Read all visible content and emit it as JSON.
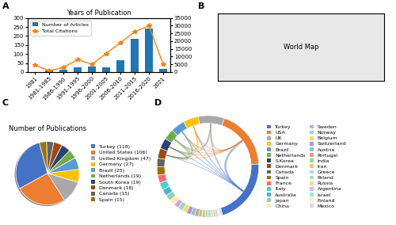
{
  "chart_data": [
    {
      "type": "bar",
      "title": "Years of Publication",
      "annotations": [
        "A"
      ],
      "categories": [
        "1981",
        "1981-1985",
        "1986-1990",
        "1991-1995",
        "1996-2000",
        "2001-2005",
        "2006-2010",
        "2011-2015",
        "2016-2020",
        "2021"
      ],
      "series": [
        {
          "name": "Number of Articles",
          "type": "bar",
          "values": [
            1,
            8,
            12,
            25,
            30,
            28,
            65,
            185,
            240,
            18
          ]
        },
        {
          "name": "Total Citations",
          "type": "line",
          "axis": "y2",
          "marker": "star",
          "line_style": "solid",
          "values": [
            4500,
            800,
            3000,
            8000,
            5000,
            12000,
            19000,
            26000,
            30000,
            5000
          ]
        }
      ],
      "ylim": [
        0,
        300
      ],
      "yticks": [
        0,
        50,
        100,
        150,
        200,
        250,
        300
      ],
      "y2lim": [
        0,
        35000
      ],
      "y2ticks": [
        0,
        5000,
        10000,
        15000,
        20000,
        25000,
        30000,
        35000
      ],
      "legend": "upper left"
    },
    {
      "type": "map",
      "annotations": [
        "B",
        "World Map"
      ]
    },
    {
      "type": "pie",
      "title": "Number of Publications",
      "annotations": [
        "C"
      ],
      "categories": [
        "Turkey (118)",
        "United States (106)",
        "United Kingdom (47)",
        "Germany (27)",
        "Brazil (25)",
        "Netherlands (19)",
        "South Korea (19)",
        "Denmark (18)",
        "Canada (15)",
        "Spain (15)"
      ],
      "values": [
        118,
        106,
        47,
        27,
        25,
        19,
        19,
        18,
        15,
        15
      ],
      "colors": [
        "#4472C4",
        "#ED7D31",
        "#A9A9A9",
        "#FFC000",
        "#5B9BD5",
        "#70AD47",
        "#264478",
        "#9E480E",
        "#636363",
        "#997300"
      ],
      "legend": "center left"
    },
    {
      "type": "chord",
      "annotations": [
        "D"
      ],
      "categories": [
        "Turkey",
        "USA",
        "UK",
        "Germany",
        "Brazil",
        "Netherlands",
        "S.Korea",
        "Denmark",
        "Canada",
        "Spain",
        "France",
        "Italy",
        "Australia",
        "Japan",
        "China",
        "Sweden",
        "Norway",
        "Belgium",
        "Switzerland",
        "Austria",
        "Portugal",
        "India",
        "Iran",
        "Greece",
        "Poland",
        "Russia",
        "Argentina",
        "Israel",
        "Finland",
        "Mexico"
      ],
      "values": [
        118,
        106,
        47,
        27,
        25,
        19,
        19,
        18,
        15,
        15,
        14,
        13,
        12,
        11,
        10,
        9,
        9,
        8,
        8,
        7,
        7,
        6,
        6,
        5,
        5,
        5,
        4,
        4,
        4,
        4
      ],
      "colors": [
        "#4472C4",
        "#ED7D31",
        "#A9A9A9",
        "#FFC000",
        "#5B9BD5",
        "#70AD47",
        "#264478",
        "#9E480E",
        "#636363",
        "#997300",
        "#FF6B6B",
        "#4ECDC4",
        "#45B7D1",
        "#96CEB4",
        "#FFEAA7",
        "#DDA0DD",
        "#98D8C8",
        "#F7DC6F",
        "#BB8FCE",
        "#85C1E9",
        "#F1948A",
        "#82E0AA",
        "#F8C471",
        "#AED6F1",
        "#A9DFBF",
        "#FAD7A0",
        "#D7BDE2",
        "#A3E4D7",
        "#FDEBD0",
        "#D5DBDB"
      ],
      "legend": "center left"
    }
  ]
}
